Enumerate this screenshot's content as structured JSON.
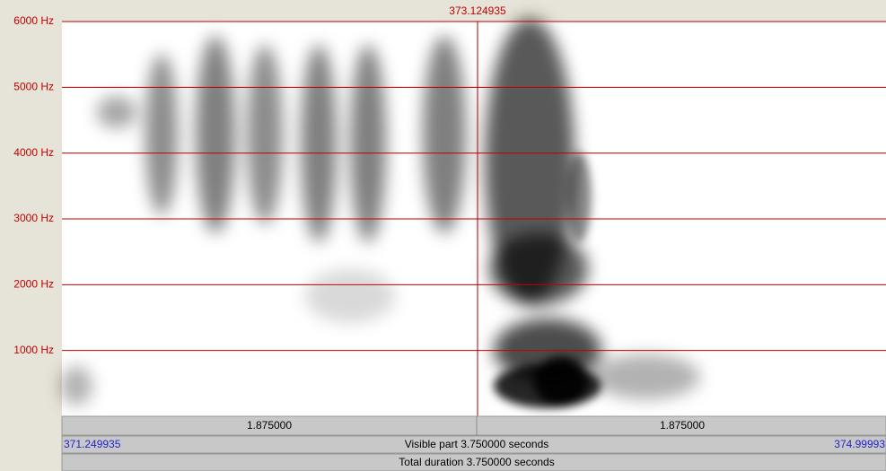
{
  "frequency_axis": {
    "ylim": [
      0,
      6000
    ],
    "ticks": [
      {
        "value": 1000,
        "label": "1000 Hz"
      },
      {
        "value": 2000,
        "label": "2000 Hz"
      },
      {
        "value": 3000,
        "label": "3000 Hz"
      },
      {
        "value": 4000,
        "label": "4000 Hz"
      },
      {
        "value": 5000,
        "label": "5000 Hz"
      },
      {
        "value": 6000,
        "label": "6000 Hz"
      }
    ]
  },
  "cursor": {
    "label": "373.124935"
  },
  "selection_bar": {
    "left": "1.875000",
    "right": "1.875000"
  },
  "visible_bar": {
    "start": "371.249935",
    "label": "Visible part 3.750000 seconds",
    "end": "374.99993"
  },
  "total_bar": {
    "label": "Total duration 3.750000 seconds"
  }
}
